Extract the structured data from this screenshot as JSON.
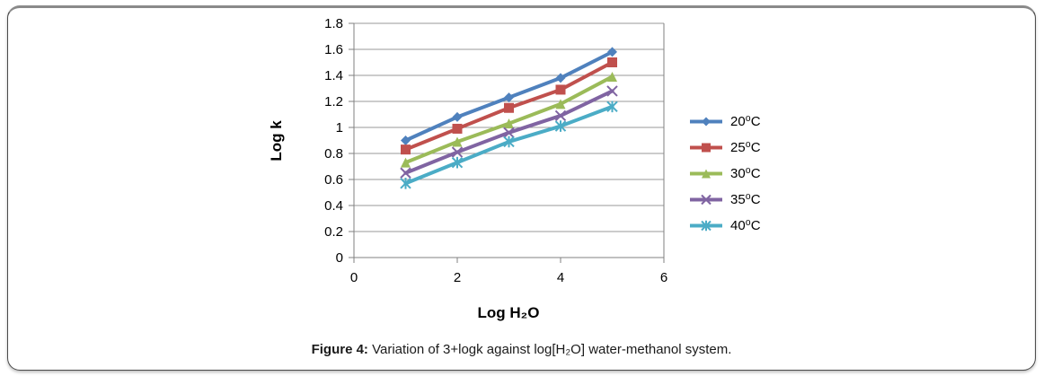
{
  "figure": {
    "caption_prefix": "Figure 4:",
    "caption_text": " Variation of 3+logk against log[H₂O] water-methanol system."
  },
  "chart_data": {
    "type": "line",
    "title": "",
    "xlabel": "Log H₂O",
    "ylabel": "Log k",
    "x": [
      1,
      2,
      3,
      4,
      5
    ],
    "series": [
      {
        "name": "20⁰C",
        "color": "#4F81BD",
        "marker": "diamond",
        "values": [
          0.9,
          1.08,
          1.23,
          1.38,
          1.58
        ]
      },
      {
        "name": "25⁰C",
        "color": "#C0504D",
        "marker": "square",
        "values": [
          0.83,
          0.99,
          1.15,
          1.29,
          1.5
        ]
      },
      {
        "name": "30⁰C",
        "color": "#9BBB59",
        "marker": "triangle",
        "values": [
          0.73,
          0.89,
          1.03,
          1.18,
          1.39
        ]
      },
      {
        "name": "35⁰C",
        "color": "#8064A2",
        "marker": "x",
        "values": [
          0.65,
          0.81,
          0.96,
          1.09,
          1.28
        ]
      },
      {
        "name": "40⁰C",
        "color": "#4BACC6",
        "marker": "star",
        "values": [
          0.57,
          0.73,
          0.89,
          1.01,
          1.16
        ]
      }
    ],
    "xlim": [
      0,
      6
    ],
    "ylim": [
      0,
      1.8
    ],
    "x_ticks": [
      0,
      2,
      4,
      6
    ],
    "x_tick_labels": [
      "0",
      "2",
      "4",
      "6"
    ],
    "y_ticks": [
      0,
      0.2,
      0.4,
      0.6,
      0.8,
      1,
      1.2,
      1.4,
      1.6,
      1.8
    ],
    "y_tick_labels": [
      "0",
      "0.2",
      "0.4",
      "0.6",
      "0.8",
      "1",
      "1.2",
      "1.4",
      "1.6",
      "1.8"
    ],
    "grid": true,
    "legend_position": "right",
    "colors": {
      "grid": "#999999",
      "axis": "#808080",
      "tick_text": "#000000"
    }
  }
}
